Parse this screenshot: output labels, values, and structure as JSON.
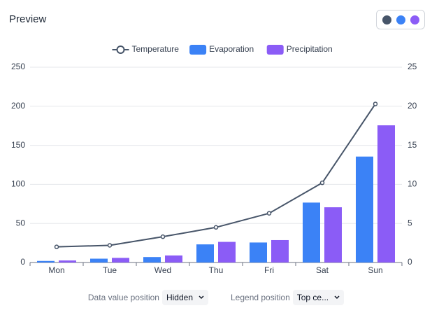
{
  "header": {
    "title": "Preview",
    "swatches": [
      "#475569",
      "#3b82f6",
      "#8b5cf6"
    ]
  },
  "chart_data": {
    "type": "bar-line",
    "categories": [
      "Mon",
      "Tue",
      "Wed",
      "Thu",
      "Fri",
      "Sat",
      "Sun"
    ],
    "series": [
      {
        "name": "Temperature",
        "type": "line",
        "axis": "y2",
        "color": "#475569",
        "values": [
          2.0,
          2.2,
          3.3,
          4.5,
          6.3,
          10.2,
          20.3
        ]
      },
      {
        "name": "Evaporation",
        "type": "bar",
        "color": "#3b82f6",
        "values": [
          2.0,
          4.9,
          7.0,
          23.2,
          25.6,
          76.7,
          135.6
        ]
      },
      {
        "name": "Precipitation",
        "type": "bar",
        "color": "#8b5cf6",
        "values": [
          2.6,
          5.9,
          9.0,
          26.4,
          28.7,
          70.7,
          175.6
        ]
      }
    ],
    "ylim": [
      0,
      250
    ],
    "yticks": [
      0,
      50,
      100,
      150,
      200,
      250
    ],
    "y2lim": [
      0,
      25
    ],
    "y2ticks": [
      0,
      5,
      10,
      15,
      20,
      25
    ],
    "grid": true,
    "legend": "top-center"
  },
  "controls": [
    {
      "label": "Data value position",
      "value": "Hidden"
    },
    {
      "label": "Legend position",
      "value": "Top ce..."
    }
  ]
}
